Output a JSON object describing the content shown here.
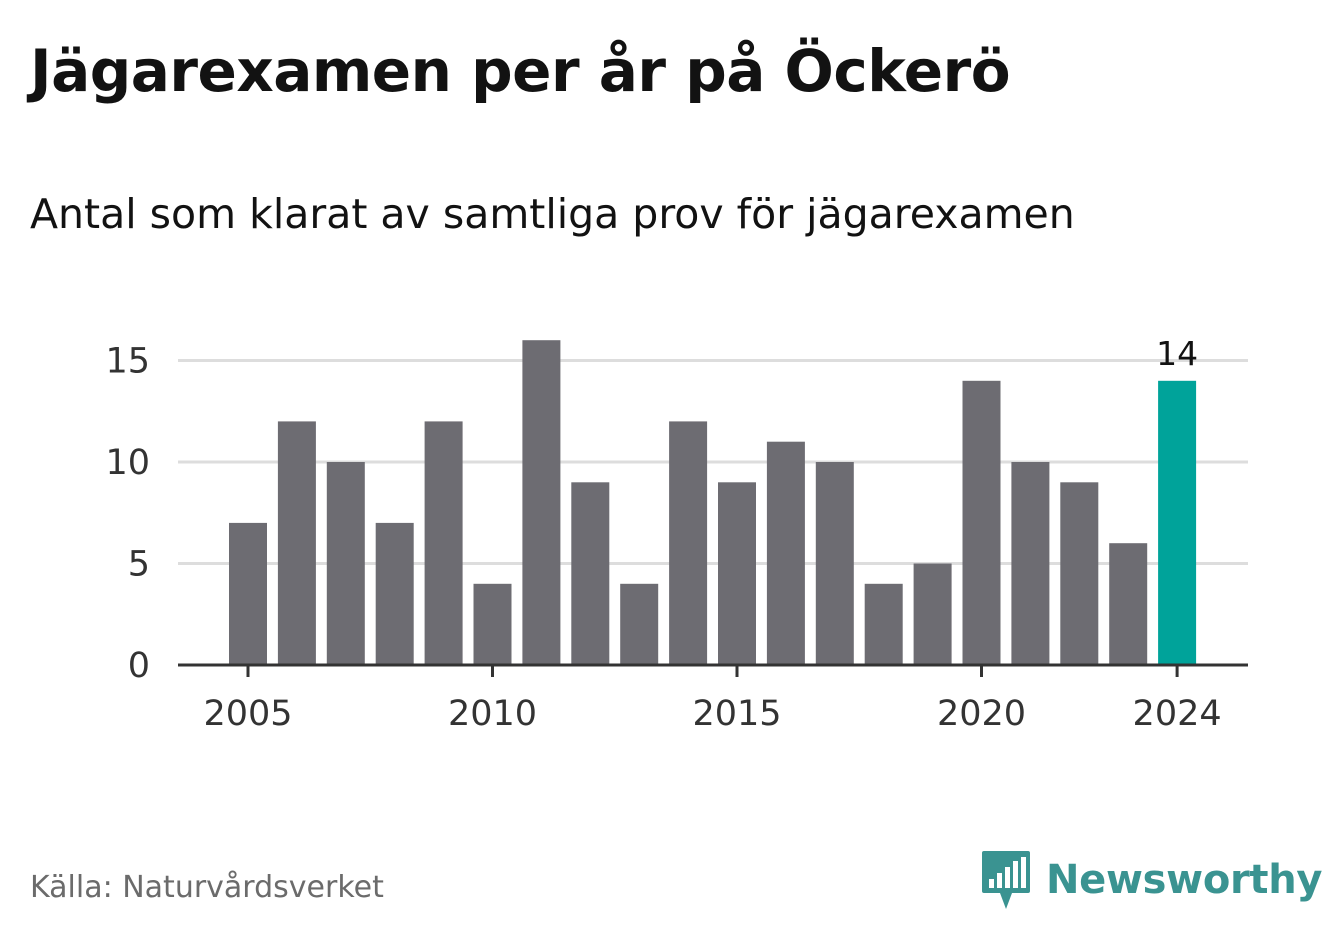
{
  "header": {
    "title": "Jägarexamen per år på Öckerö",
    "subtitle": "Antal som klarat av samtliga prov för jägarexamen"
  },
  "footer": {
    "source": "Källa: Naturvårdsverket",
    "brand": "Newsworthy",
    "brand_icon": "newsworthy-logo-icon"
  },
  "colors": {
    "bar": "#6d6c72",
    "highlight": "#00a39a",
    "grid": "#dddddd",
    "axis": "#333333",
    "tick_label": "#333333",
    "brand": "#3a9391"
  },
  "chart_data": {
    "type": "bar",
    "title": "Jägarexamen per år på Öckerö",
    "subtitle": "Antal som klarat av samtliga prov för jägarexamen",
    "categories": [
      2005,
      2006,
      2007,
      2008,
      2009,
      2010,
      2011,
      2012,
      2013,
      2014,
      2015,
      2016,
      2017,
      2018,
      2019,
      2020,
      2021,
      2022,
      2023,
      2024
    ],
    "values": [
      7,
      12,
      10,
      7,
      12,
      4,
      16,
      9,
      4,
      12,
      9,
      11,
      10,
      4,
      5,
      14,
      10,
      9,
      6,
      14
    ],
    "highlight_category": 2024,
    "data_labels": [
      {
        "category": 2024,
        "text": "14"
      }
    ],
    "xticks": [
      "2005",
      "2010",
      "2015",
      "2020",
      "2024"
    ],
    "yticks": [
      "0",
      "5",
      "10",
      "15"
    ],
    "ylim": [
      0,
      16
    ],
    "xlabel": "",
    "ylabel": "",
    "grid": "horizontal",
    "legend": "none"
  }
}
